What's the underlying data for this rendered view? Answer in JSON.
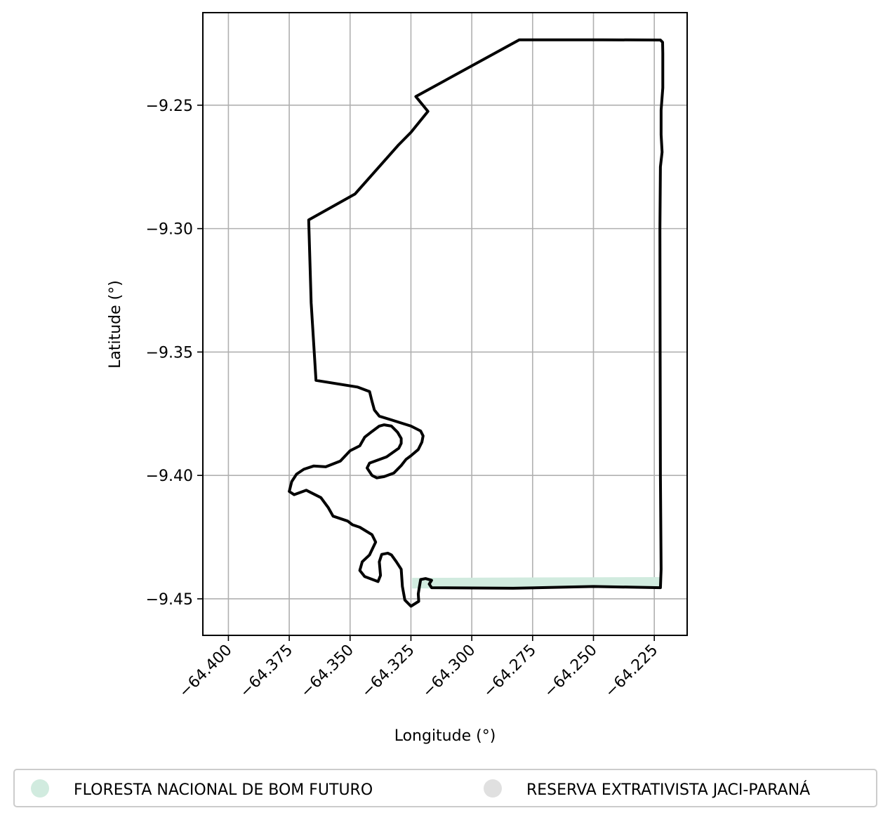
{
  "chart_data": {
    "type": "map",
    "xlabel": "Longitude (°)",
    "ylabel": "Latitude (°)",
    "xlim": [
      -64.4105,
      -64.2115
    ],
    "ylim": [
      -9.4648,
      -9.2125
    ],
    "xticks": [
      -64.4,
      -64.375,
      -64.35,
      -64.325,
      -64.3,
      -64.275,
      -64.25,
      -64.225
    ],
    "xtick_labels": [
      "−64.400",
      "−64.375",
      "−64.350",
      "−64.325",
      "−64.300",
      "−64.275",
      "−64.250",
      "−64.225"
    ],
    "yticks": [
      -9.25,
      -9.3,
      -9.35,
      -9.4,
      -9.45
    ],
    "ytick_labels": [
      "−9.25",
      "−9.30",
      "−9.35",
      "−9.40",
      "−9.45"
    ],
    "grid": true,
    "legend_placement": "bottom",
    "series": [
      {
        "name": "FLORESTA NACIONAL DE BOM FUTURO",
        "color": "#d1ebdf",
        "polygon": [
          [
            -64.3245,
            -9.4415
          ],
          [
            -64.2218,
            -9.4412
          ],
          [
            -64.2218,
            -9.4455
          ],
          [
            -64.3245,
            -9.4458
          ]
        ]
      },
      {
        "name": "RESERVA EXTRATIVISTA JACI-PARANÁ",
        "color": "#e0e0e0",
        "outline_color": "#000000",
        "polygon": [
          [
            -64.2805,
            -9.2235
          ],
          [
            -64.246,
            -9.2235
          ],
          [
            -64.2225,
            -9.2236
          ],
          [
            -64.2216,
            -9.2245
          ],
          [
            -64.2215,
            -9.229
          ],
          [
            -64.2215,
            -9.243
          ],
          [
            -64.2222,
            -9.252
          ],
          [
            -64.2222,
            -9.262
          ],
          [
            -64.2218,
            -9.269
          ],
          [
            -64.2225,
            -9.275
          ],
          [
            -64.2227,
            -9.3
          ],
          [
            -64.2226,
            -9.35
          ],
          [
            -64.2225,
            -9.4
          ],
          [
            -64.2222,
            -9.438
          ],
          [
            -64.2225,
            -9.4455
          ],
          [
            -64.25,
            -9.445
          ],
          [
            -64.283,
            -9.4457
          ],
          [
            -64.3165,
            -9.4455
          ],
          [
            -64.3175,
            -9.444
          ],
          [
            -64.3165,
            -9.4425
          ],
          [
            -64.319,
            -9.4418
          ],
          [
            -64.321,
            -9.4422
          ],
          [
            -64.3215,
            -9.445
          ],
          [
            -64.322,
            -9.448
          ],
          [
            -64.3218,
            -9.451
          ],
          [
            -64.325,
            -9.453
          ],
          [
            -64.3275,
            -9.4505
          ],
          [
            -64.3285,
            -9.445
          ],
          [
            -64.329,
            -9.438
          ],
          [
            -64.331,
            -9.435
          ],
          [
            -64.333,
            -9.4322
          ],
          [
            -64.3345,
            -9.4315
          ],
          [
            -64.337,
            -9.432
          ],
          [
            -64.338,
            -9.435
          ],
          [
            -64.3375,
            -9.4405
          ],
          [
            -64.3385,
            -9.443
          ],
          [
            -64.344,
            -9.441
          ],
          [
            -64.346,
            -9.4385
          ],
          [
            -64.345,
            -9.435
          ],
          [
            -64.342,
            -9.4322
          ],
          [
            -64.3395,
            -9.427
          ],
          [
            -64.341,
            -9.424
          ],
          [
            -64.346,
            -9.421
          ],
          [
            -64.349,
            -9.42
          ],
          [
            -64.351,
            -9.4185
          ],
          [
            -64.354,
            -9.4175
          ],
          [
            -64.357,
            -9.4165
          ],
          [
            -64.359,
            -9.413
          ],
          [
            -64.362,
            -9.409
          ],
          [
            -64.368,
            -9.406
          ],
          [
            -64.373,
            -9.4078
          ],
          [
            -64.375,
            -9.4065
          ],
          [
            -64.374,
            -9.4025
          ],
          [
            -64.372,
            -9.3995
          ],
          [
            -64.369,
            -9.3975
          ],
          [
            -64.365,
            -9.3962
          ],
          [
            -64.36,
            -9.3965
          ],
          [
            -64.354,
            -9.3942
          ],
          [
            -64.35,
            -9.39
          ],
          [
            -64.346,
            -9.388
          ],
          [
            -64.344,
            -9.3845
          ],
          [
            -64.341,
            -9.3822
          ],
          [
            -64.338,
            -9.38
          ],
          [
            -64.336,
            -9.3795
          ],
          [
            -64.333,
            -9.38
          ],
          [
            -64.3305,
            -9.3825
          ],
          [
            -64.329,
            -9.385
          ],
          [
            -64.329,
            -9.387
          ],
          [
            -64.33,
            -9.389
          ],
          [
            -64.335,
            -9.3925
          ],
          [
            -64.342,
            -9.395
          ],
          [
            -64.343,
            -9.397
          ],
          [
            -64.341,
            -9.4
          ],
          [
            -64.339,
            -9.401
          ],
          [
            -64.336,
            -9.4005
          ],
          [
            -64.332,
            -9.399
          ],
          [
            -64.329,
            -9.396
          ],
          [
            -64.327,
            -9.3935
          ],
          [
            -64.325,
            -9.392
          ],
          [
            -64.322,
            -9.3895
          ],
          [
            -64.3205,
            -9.3865
          ],
          [
            -64.32,
            -9.384
          ],
          [
            -64.321,
            -9.382
          ],
          [
            -64.325,
            -9.38
          ],
          [
            -64.333,
            -9.3775
          ],
          [
            -64.338,
            -9.376
          ],
          [
            -64.34,
            -9.3735
          ],
          [
            -64.341,
            -9.37
          ],
          [
            -64.342,
            -9.366
          ],
          [
            -64.347,
            -9.3642
          ],
          [
            -64.364,
            -9.3615
          ],
          [
            -64.366,
            -9.33
          ],
          [
            -64.367,
            -9.2965
          ],
          [
            -64.348,
            -9.286
          ],
          [
            -64.33,
            -9.266
          ],
          [
            -64.325,
            -9.261
          ],
          [
            -64.318,
            -9.2525
          ],
          [
            -64.323,
            -9.2465
          ],
          [
            -64.2805,
            -9.2235
          ]
        ]
      }
    ]
  }
}
